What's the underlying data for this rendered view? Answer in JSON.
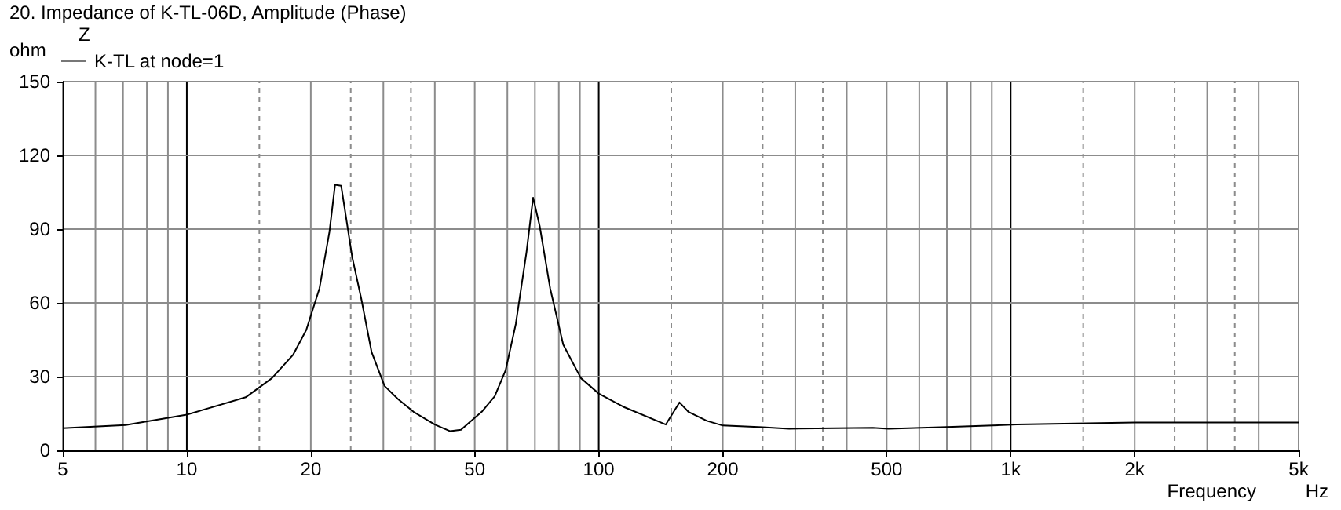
{
  "chart_data": {
    "type": "line",
    "title": "20. Impedance of K-TL-06D, Amplitude (Phase)",
    "ylabel": "ohm",
    "xlabel": "Frequency",
    "legend_title": "Z",
    "annotations": [
      "Hz"
    ],
    "log": "x",
    "grid": true,
    "legend": "top left",
    "marker": "none",
    "line_style": "solid",
    "xlim": [
      5,
      5000
    ],
    "xticks": [
      5,
      10,
      20,
      50,
      100,
      200,
      500,
      {
        "value": 1000,
        "label": "1k"
      },
      {
        "value": 2000,
        "label": "2k"
      },
      {
        "value": 5000,
        "label": "5k"
      }
    ],
    "ylim": [
      0,
      150
    ],
    "yticks": [
      0,
      30,
      60,
      90,
      120,
      150
    ],
    "x": [
      5,
      7.1,
      10,
      13.9,
      16.1,
      18.1,
      19.5,
      21,
      22.2,
      22.9,
      23.7,
      25.2,
      26.5,
      28.1,
      30.2,
      32.5,
      35.5,
      40,
      43.6,
      46.3,
      52,
      55.9,
      59.4,
      62.9,
      66.8,
      69.3,
      71.9,
      76.2,
      82,
      90.5,
      100,
      114.5,
      145.5,
      157,
      165,
      183,
      200,
      250,
      290,
      463,
      505,
      677,
      1036,
      2000,
      5000
    ],
    "series": [
      {
        "name": "K-TL at node=1",
        "color": "#000000",
        "values": [
          9,
          10.3,
          14.5,
          21.6,
          29.4,
          38.8,
          49,
          66,
          89,
          108,
          107.6,
          78.7,
          61.9,
          39.9,
          26.2,
          21,
          15.7,
          10.5,
          7.8,
          8.4,
          15.7,
          22,
          32.5,
          51.4,
          80.8,
          102.8,
          91.2,
          66,
          43,
          29.4,
          23.1,
          17.8,
          10.5,
          19.5,
          15.7,
          12,
          10.1,
          9.4,
          8.8,
          9.2,
          8.8,
          9.4,
          10.5,
          11.3,
          11.3
        ]
      }
    ]
  }
}
